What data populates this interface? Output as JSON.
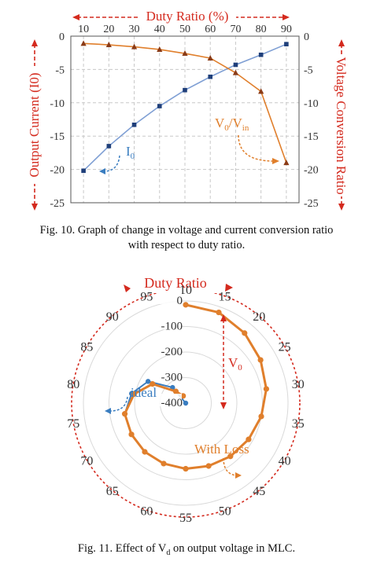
{
  "chart_data": [
    {
      "type": "line",
      "title": "",
      "x_top_label": "Duty Ratio (%)",
      "ylabel_left": "Output Current (I0)",
      "ylabel_right": "Voltage Conversion Ratio",
      "x": [
        10,
        20,
        30,
        40,
        50,
        60,
        70,
        80,
        90
      ],
      "xlim": [
        5,
        95
      ],
      "ylim_left": [
        -25,
        0
      ],
      "ylim_right": [
        -25,
        0
      ],
      "y_ticks": [
        0,
        -5,
        -10,
        -15,
        -20,
        -25
      ],
      "grid": true,
      "series": [
        {
          "name": "I0",
          "axis": "left",
          "color": "#7f9fd4",
          "marker": "square",
          "x": [
            10,
            20,
            30,
            40,
            50,
            60,
            70,
            80,
            90
          ],
          "values": [
            -20.2,
            -16.5,
            -13.3,
            -10.5,
            -8.1,
            -6.1,
            -4.3,
            -2.8,
            -1.2
          ]
        },
        {
          "name": "V0/Vin",
          "axis": "right",
          "color": "#e07f2c",
          "marker": "triangle",
          "x": [
            10,
            20,
            30,
            40,
            50,
            60,
            70,
            80,
            90
          ],
          "values": [
            -1.1,
            -1.3,
            -1.6,
            -2.0,
            -2.6,
            -3.3,
            -5.5,
            -8.3,
            -19.0
          ]
        }
      ],
      "annotations": [
        {
          "label_main": "I",
          "label_sub": "0",
          "color": "#3a7dc0"
        },
        {
          "label_main": "V",
          "label_sub": "0",
          "label_sep": "/V",
          "label_sub2": "in",
          "color": "#e07f2c"
        }
      ]
    },
    {
      "type": "radar",
      "title": "",
      "angular_title": "Duty Ratio",
      "categories": [
        10,
        15,
        20,
        25,
        30,
        35,
        40,
        45,
        50,
        55,
        60,
        65,
        70,
        75,
        80,
        85,
        90,
        95
      ],
      "r_ticks": [
        0,
        -100,
        -200,
        -300,
        -400
      ],
      "rlim": [
        -400,
        0
      ],
      "r_axis_label": {
        "main": "V",
        "sub": "0"
      },
      "series": [
        {
          "name": "ideal",
          "color": "#3a7dc0",
          "values": [
            -15,
            -22,
            -42,
            -62,
            -80,
            -100,
            -116,
            -128,
            -138,
            -143,
            -148,
            -151,
            -155,
            -158,
            -185,
            -230,
            -320,
            -400
          ]
        },
        {
          "name": "With Loss",
          "color": "#e07f2c",
          "values": [
            -15,
            -22,
            -42,
            -62,
            -80,
            -100,
            -116,
            -128,
            -138,
            -143,
            -148,
            -151,
            -155,
            -158,
            -195,
            -250,
            -340,
            -370
          ]
        }
      ]
    }
  ],
  "captions": {
    "fig10_line1": "Fig. 10. Graph of change in voltage and current conversion ratio",
    "fig10_line2": "with respect to duty ratio.",
    "fig11_pre": "Fig. 11. Effect of V",
    "fig11_sub": "d",
    "fig11_post": " on output voltage in MLC."
  }
}
